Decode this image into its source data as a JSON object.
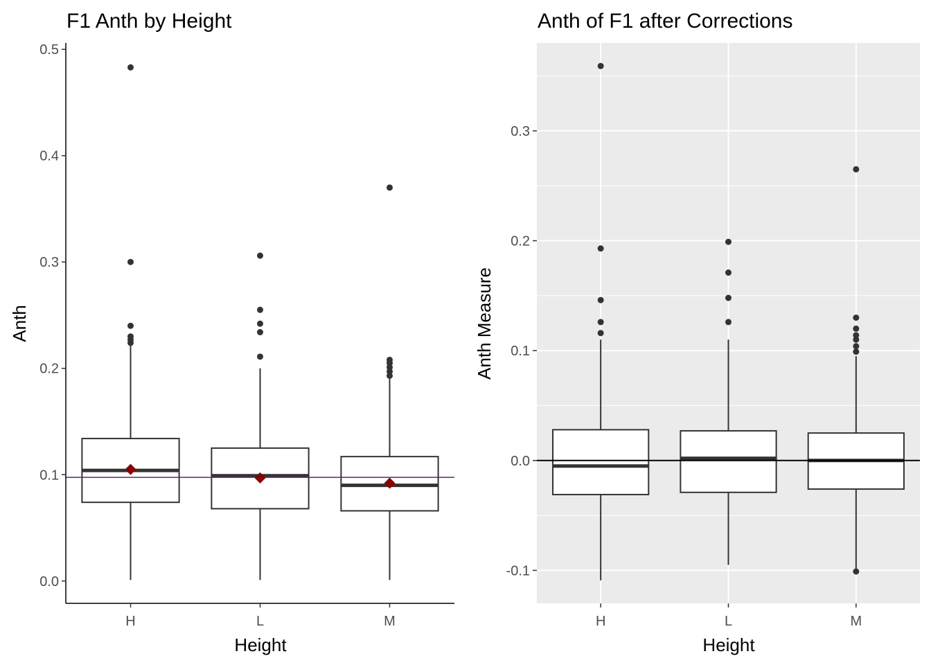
{
  "chart_data": [
    {
      "type": "box",
      "title": "F1 Anth by Height",
      "xlabel": "Height",
      "ylabel": "Anth",
      "categories": [
        "H",
        "L",
        "M"
      ],
      "ylim": [
        -0.021,
        0.506
      ],
      "yticks": [
        0.0,
        0.1,
        0.2,
        0.3,
        0.4,
        0.5
      ],
      "ytick_labels": [
        "0.0",
        "0.1",
        "0.2",
        "0.3",
        "0.4",
        "0.5"
      ],
      "theme": "classic",
      "grid": false,
      "colors": {
        "box_fill": "#ffffff",
        "box_line": "#333333",
        "mean_marker": "#8b0000",
        "reference_line": "#5b2c6f",
        "outlier": "#333333",
        "tick_text": "#4d4d4d"
      },
      "reference_line": 0.0975,
      "boxes": [
        {
          "category": "H",
          "whisker_low": 0.001,
          "q1": 0.074,
          "median": 0.104,
          "q3": 0.134,
          "whisker_high": 0.222,
          "mean": 0.105,
          "outliers": [
            0.483,
            0.3,
            0.24,
            0.23,
            0.227,
            0.224
          ]
        },
        {
          "category": "L",
          "whisker_low": 0.001,
          "q1": 0.068,
          "median": 0.099,
          "q3": 0.125,
          "whisker_high": 0.2,
          "mean": 0.097,
          "outliers": [
            0.306,
            0.255,
            0.242,
            0.234,
            0.211
          ]
        },
        {
          "category": "M",
          "whisker_low": 0.001,
          "q1": 0.066,
          "median": 0.09,
          "q3": 0.117,
          "whisker_high": 0.19,
          "mean": 0.092,
          "outliers": [
            0.37,
            0.208,
            0.205,
            0.201,
            0.197,
            0.193
          ]
        }
      ]
    },
    {
      "type": "box",
      "title": "Anth of F1 after Corrections",
      "xlabel": "Height",
      "ylabel": "Anth Measure",
      "categories": [
        "H",
        "L",
        "M"
      ],
      "ylim": [
        -0.13,
        0.38
      ],
      "yticks": [
        -0.1,
        0.0,
        0.1,
        0.2,
        0.3
      ],
      "ytick_labels": [
        "-0.1",
        "0.0",
        "0.1",
        "0.2",
        "0.3"
      ],
      "theme": "grey",
      "grid": true,
      "colors": {
        "panel_bg": "#ebebeb",
        "grid": "#ffffff",
        "box_fill": "#ffffff",
        "box_line": "#333333",
        "reference_line": "#000000",
        "outlier": "#333333",
        "tick_text": "#4d4d4d"
      },
      "reference_line": 0.0,
      "boxes": [
        {
          "category": "H",
          "whisker_low": -0.109,
          "q1": -0.031,
          "median": -0.005,
          "q3": 0.028,
          "whisker_high": 0.11,
          "outliers": [
            0.359,
            0.193,
            0.146,
            0.126,
            0.116
          ]
        },
        {
          "category": "L",
          "whisker_low": -0.095,
          "q1": -0.029,
          "median": 0.002,
          "q3": 0.027,
          "whisker_high": 0.11,
          "outliers": [
            0.199,
            0.171,
            0.148,
            0.126
          ]
        },
        {
          "category": "M",
          "whisker_low": -0.101,
          "q1": -0.026,
          "median": 0.0,
          "q3": 0.025,
          "whisker_high": 0.095,
          "outliers": [
            0.265,
            0.13,
            0.12,
            0.114,
            0.11,
            0.104,
            0.099,
            -0.101
          ]
        }
      ]
    }
  ]
}
